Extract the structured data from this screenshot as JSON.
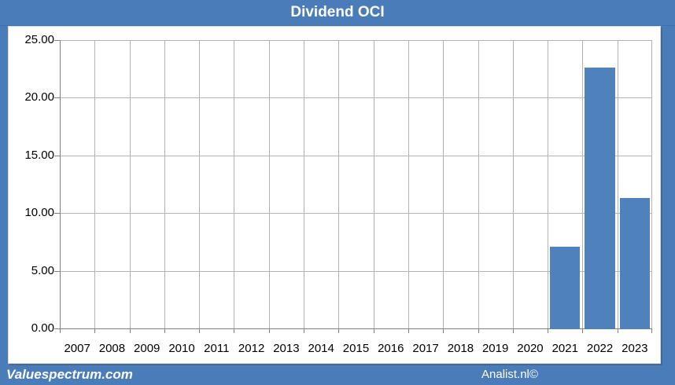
{
  "title": "Dividend OCI",
  "footer": {
    "left": "Valuespectrum.com",
    "right": "Analist.nl©"
  },
  "colors": {
    "frame_blue": "#4a7cba",
    "bar_blue": "#4f81bd",
    "gridline_gray": "#b3b3b3",
    "axis_gray": "#7f7f7f",
    "title_text": "#ffffff",
    "panel_bg": "#ffffff"
  },
  "chart_data": {
    "type": "bar",
    "title": "Dividend OCI",
    "categories": [
      "2007",
      "2008",
      "2009",
      "2010",
      "2011",
      "2012",
      "2013",
      "2014",
      "2015",
      "2016",
      "2017",
      "2018",
      "2019",
      "2020",
      "2021",
      "2022",
      "2023"
    ],
    "values": [
      0,
      0,
      0,
      0,
      0,
      0,
      0,
      0,
      0,
      0,
      0,
      0,
      0,
      0,
      7.15,
      22.6,
      11.35
    ],
    "xlabel": "",
    "ylabel": "",
    "ylim": [
      0,
      25
    ],
    "ytick_step": 5,
    "ytick_labels": [
      "25.00",
      "20.00",
      "15.00",
      "10.00",
      "5.00",
      "0.00"
    ],
    "grid": true,
    "legend": false,
    "bar_color": "#4f81bd"
  }
}
